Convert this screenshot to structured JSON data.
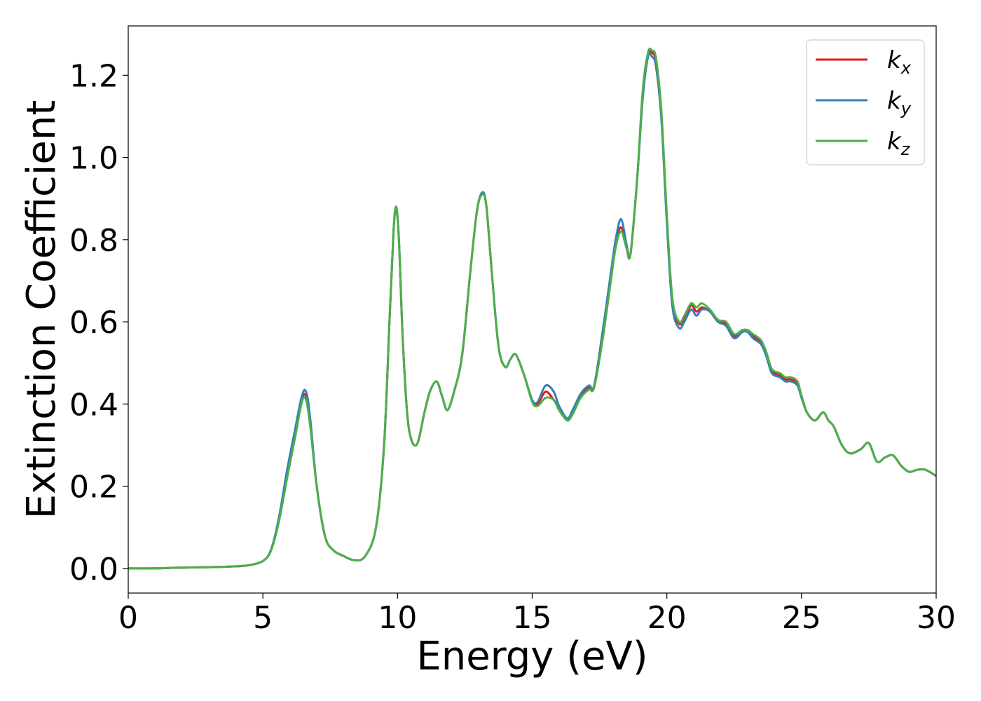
{
  "chart_data": {
    "type": "line",
    "xlabel": "Energy (eV)",
    "ylabel": "Extinction Coefficient",
    "xlim": [
      0,
      30
    ],
    "ylim": [
      -0.06,
      1.32
    ],
    "xticks": [
      0,
      5,
      10,
      15,
      20,
      25,
      30
    ],
    "yticks": [
      0.0,
      0.2,
      0.4,
      0.6,
      0.8,
      1.0,
      1.2
    ],
    "xtick_labels": [
      "0",
      "5",
      "10",
      "15",
      "20",
      "25",
      "30"
    ],
    "ytick_labels": [
      "0.0",
      "0.2",
      "0.4",
      "0.6",
      "0.8",
      "1.0",
      "1.2"
    ],
    "grid": false,
    "legend_position": "top-right",
    "series": [
      {
        "name": "k_x",
        "legend_main": "k",
        "legend_sub": "x",
        "color": "#e41a1c",
        "x": [
          0,
          1,
          2,
          3,
          4,
          4.5,
          5,
          5.3,
          5.6,
          5.9,
          6.2,
          6.45,
          6.6,
          6.75,
          7.0,
          7.3,
          7.6,
          8.0,
          8.4,
          8.8,
          9.2,
          9.5,
          9.7,
          9.85,
          9.95,
          10.05,
          10.2,
          10.4,
          10.7,
          11.0,
          11.2,
          11.45,
          11.65,
          11.85,
          12.1,
          12.4,
          12.7,
          12.95,
          13.15,
          13.3,
          13.5,
          13.75,
          14.0,
          14.2,
          14.4,
          14.7,
          15.0,
          15.2,
          15.5,
          15.8,
          16.0,
          16.3,
          16.5,
          16.8,
          17.1,
          17.3,
          17.6,
          17.9,
          18.1,
          18.3,
          18.5,
          18.65,
          18.9,
          19.1,
          19.3,
          19.45,
          19.6,
          19.8,
          20.0,
          20.2,
          20.45,
          20.65,
          20.9,
          21.1,
          21.3,
          21.6,
          21.9,
          22.2,
          22.5,
          22.8,
          23.0,
          23.2,
          23.5,
          23.7,
          23.9,
          24.2,
          24.4,
          24.6,
          24.85,
          25.0,
          25.2,
          25.5,
          25.8,
          26.0,
          26.2,
          26.5,
          26.8,
          27.2,
          27.5,
          27.8,
          28.1,
          28.4,
          28.7,
          29.0,
          29.3,
          29.6,
          30.0
        ],
        "y": [
          0.0,
          0.0,
          0.002,
          0.003,
          0.005,
          0.008,
          0.018,
          0.045,
          0.12,
          0.23,
          0.33,
          0.41,
          0.42,
          0.36,
          0.2,
          0.08,
          0.045,
          0.03,
          0.02,
          0.03,
          0.1,
          0.3,
          0.6,
          0.82,
          0.875,
          0.8,
          0.55,
          0.35,
          0.3,
          0.38,
          0.43,
          0.455,
          0.42,
          0.385,
          0.43,
          0.52,
          0.72,
          0.87,
          0.915,
          0.88,
          0.72,
          0.54,
          0.49,
          0.51,
          0.52,
          0.47,
          0.41,
          0.4,
          0.43,
          0.41,
          0.39,
          0.36,
          0.38,
          0.42,
          0.44,
          0.44,
          0.56,
          0.7,
          0.79,
          0.83,
          0.78,
          0.765,
          0.95,
          1.15,
          1.25,
          1.255,
          1.23,
          1.1,
          0.85,
          0.65,
          0.595,
          0.61,
          0.64,
          0.625,
          0.635,
          0.625,
          0.6,
          0.595,
          0.565,
          0.58,
          0.575,
          0.565,
          0.55,
          0.52,
          0.48,
          0.47,
          0.46,
          0.46,
          0.45,
          0.42,
          0.38,
          0.36,
          0.38,
          0.36,
          0.345,
          0.3,
          0.28,
          0.29,
          0.305,
          0.26,
          0.27,
          0.275,
          0.25,
          0.235,
          0.24,
          0.24,
          0.225
        ]
      },
      {
        "name": "k_y",
        "legend_main": "k",
        "legend_sub": "y",
        "color": "#377eb8",
        "x": [
          0,
          1,
          2,
          3,
          4,
          4.5,
          5,
          5.3,
          5.6,
          5.9,
          6.2,
          6.45,
          6.6,
          6.75,
          7.0,
          7.3,
          7.6,
          8.0,
          8.4,
          8.8,
          9.2,
          9.5,
          9.7,
          9.85,
          9.95,
          10.05,
          10.2,
          10.4,
          10.7,
          11.0,
          11.2,
          11.45,
          11.65,
          11.85,
          12.1,
          12.4,
          12.7,
          12.95,
          13.15,
          13.3,
          13.5,
          13.75,
          14.0,
          14.2,
          14.4,
          14.7,
          15.0,
          15.2,
          15.5,
          15.8,
          16.0,
          16.3,
          16.5,
          16.8,
          17.1,
          17.3,
          17.6,
          17.9,
          18.1,
          18.3,
          18.5,
          18.65,
          18.9,
          19.1,
          19.3,
          19.45,
          19.6,
          19.8,
          20.0,
          20.2,
          20.45,
          20.65,
          20.9,
          21.1,
          21.3,
          21.6,
          21.9,
          22.2,
          22.5,
          22.8,
          23.0,
          23.2,
          23.5,
          23.7,
          23.9,
          24.2,
          24.4,
          24.6,
          24.85,
          25.0,
          25.2,
          25.5,
          25.8,
          26.0,
          26.2,
          26.5,
          26.8,
          27.2,
          27.5,
          27.8,
          28.1,
          28.4,
          28.7,
          29.0,
          29.3,
          29.6,
          30.0
        ],
        "y": [
          0.0,
          0.0,
          0.002,
          0.003,
          0.005,
          0.008,
          0.018,
          0.045,
          0.125,
          0.24,
          0.34,
          0.42,
          0.43,
          0.37,
          0.2,
          0.08,
          0.045,
          0.03,
          0.02,
          0.03,
          0.1,
          0.3,
          0.6,
          0.82,
          0.875,
          0.8,
          0.55,
          0.35,
          0.3,
          0.38,
          0.43,
          0.455,
          0.42,
          0.385,
          0.43,
          0.52,
          0.72,
          0.87,
          0.915,
          0.88,
          0.72,
          0.54,
          0.49,
          0.51,
          0.52,
          0.47,
          0.41,
          0.405,
          0.445,
          0.43,
          0.395,
          0.365,
          0.385,
          0.425,
          0.445,
          0.445,
          0.57,
          0.71,
          0.8,
          0.85,
          0.79,
          0.765,
          0.95,
          1.14,
          1.245,
          1.245,
          1.22,
          1.09,
          0.84,
          0.64,
          0.585,
          0.6,
          0.63,
          0.615,
          0.63,
          0.625,
          0.6,
          0.59,
          0.56,
          0.575,
          0.575,
          0.56,
          0.545,
          0.515,
          0.475,
          0.465,
          0.455,
          0.455,
          0.445,
          0.415,
          0.38,
          0.36,
          0.38,
          0.36,
          0.345,
          0.3,
          0.28,
          0.29,
          0.305,
          0.26,
          0.27,
          0.275,
          0.25,
          0.235,
          0.24,
          0.24,
          0.225
        ]
      },
      {
        "name": "k_z",
        "legend_main": "k",
        "legend_sub": "z",
        "color": "#4daf4a",
        "x": [
          0,
          1,
          2,
          3,
          4,
          4.5,
          5,
          5.3,
          5.6,
          5.9,
          6.2,
          6.45,
          6.6,
          6.75,
          7.0,
          7.3,
          7.6,
          8.0,
          8.4,
          8.8,
          9.2,
          9.5,
          9.7,
          9.85,
          9.95,
          10.05,
          10.2,
          10.4,
          10.7,
          11.0,
          11.2,
          11.45,
          11.65,
          11.85,
          12.1,
          12.4,
          12.7,
          12.95,
          13.15,
          13.3,
          13.5,
          13.75,
          14.0,
          14.2,
          14.4,
          14.7,
          15.0,
          15.2,
          15.5,
          15.8,
          16.0,
          16.3,
          16.5,
          16.8,
          17.1,
          17.3,
          17.6,
          17.9,
          18.1,
          18.3,
          18.5,
          18.65,
          18.9,
          19.1,
          19.3,
          19.45,
          19.6,
          19.8,
          20.0,
          20.2,
          20.45,
          20.65,
          20.9,
          21.1,
          21.3,
          21.6,
          21.9,
          22.2,
          22.5,
          22.8,
          23.0,
          23.2,
          23.5,
          23.7,
          23.9,
          24.2,
          24.4,
          24.6,
          24.85,
          25.0,
          25.2,
          25.5,
          25.8,
          26.0,
          26.2,
          26.5,
          26.8,
          27.2,
          27.5,
          27.8,
          28.1,
          28.4,
          28.7,
          29.0,
          29.3,
          29.6,
          30.0
        ],
        "y": [
          0.0,
          0.0,
          0.002,
          0.003,
          0.005,
          0.008,
          0.018,
          0.043,
          0.115,
          0.22,
          0.32,
          0.405,
          0.41,
          0.35,
          0.2,
          0.08,
          0.045,
          0.03,
          0.02,
          0.03,
          0.1,
          0.3,
          0.6,
          0.82,
          0.88,
          0.8,
          0.55,
          0.35,
          0.3,
          0.38,
          0.43,
          0.455,
          0.42,
          0.385,
          0.43,
          0.52,
          0.72,
          0.87,
          0.91,
          0.88,
          0.72,
          0.54,
          0.49,
          0.51,
          0.52,
          0.47,
          0.405,
          0.395,
          0.415,
          0.41,
          0.385,
          0.36,
          0.375,
          0.415,
          0.435,
          0.44,
          0.55,
          0.69,
          0.78,
          0.82,
          0.78,
          0.765,
          0.95,
          1.16,
          1.255,
          1.26,
          1.24,
          1.11,
          0.86,
          0.66,
          0.6,
          0.615,
          0.645,
          0.635,
          0.645,
          0.63,
          0.605,
          0.6,
          0.57,
          0.58,
          0.58,
          0.57,
          0.555,
          0.525,
          0.485,
          0.475,
          0.465,
          0.465,
          0.455,
          0.42,
          0.38,
          0.36,
          0.38,
          0.36,
          0.345,
          0.3,
          0.28,
          0.29,
          0.305,
          0.26,
          0.27,
          0.275,
          0.25,
          0.235,
          0.24,
          0.24,
          0.225
        ]
      }
    ]
  }
}
